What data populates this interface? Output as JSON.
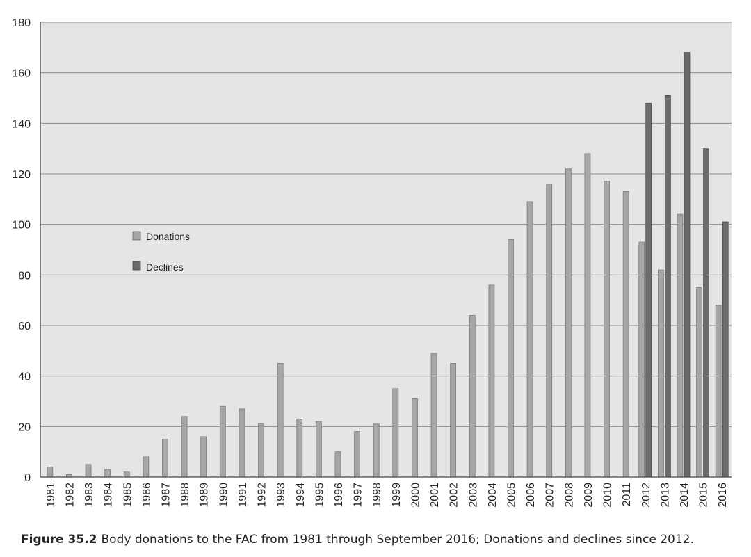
{
  "caption": {
    "label": "Figure 35.2",
    "text": "Body donations to the FAC from 1981 through September 2016; Donations and declines since 2012."
  },
  "chart_data": {
    "type": "bar",
    "title": "",
    "xlabel": "",
    "ylabel": "",
    "ylim": [
      0,
      180
    ],
    "yticks": [
      0,
      20,
      40,
      60,
      80,
      100,
      120,
      140,
      160,
      180
    ],
    "grid": true,
    "legend_position": "center-left",
    "categories": [
      "1981",
      "1982",
      "1983",
      "1984",
      "1985",
      "1986",
      "1987",
      "1988",
      "1989",
      "1990",
      "1991",
      "1992",
      "1993",
      "1994",
      "1995",
      "1996",
      "1997",
      "1998",
      "1999",
      "2000",
      "2001",
      "2002",
      "2003",
      "2004",
      "2005",
      "2006",
      "2007",
      "2008",
      "2009",
      "2010",
      "2011",
      "2012",
      "2013",
      "2014",
      "2015",
      "2016"
    ],
    "series": [
      {
        "name": "Donations",
        "color": "#a6a6a6",
        "values": [
          4,
          1,
          5,
          3,
          2,
          8,
          15,
          24,
          16,
          28,
          27,
          21,
          45,
          23,
          22,
          10,
          18,
          21,
          35,
          31,
          49,
          45,
          64,
          76,
          94,
          109,
          116,
          122,
          128,
          117,
          113,
          93,
          82,
          104,
          75,
          68
        ]
      },
      {
        "name": "Declines",
        "color": "#6b6b6b",
        "values": [
          null,
          null,
          null,
          null,
          null,
          null,
          null,
          null,
          null,
          null,
          null,
          null,
          null,
          null,
          null,
          null,
          null,
          null,
          null,
          null,
          null,
          null,
          null,
          null,
          null,
          null,
          null,
          null,
          null,
          null,
          null,
          148,
          151,
          168,
          130,
          101
        ]
      }
    ]
  }
}
